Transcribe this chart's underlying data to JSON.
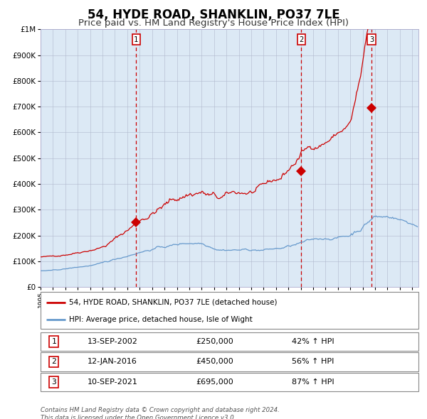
{
  "title": "54, HYDE ROAD, SHANKLIN, PO37 7LE",
  "subtitle": "Price paid vs. HM Land Registry's House Price Index (HPI)",
  "bg_color": "#dce9f5",
  "red_line_label": "54, HYDE ROAD, SHANKLIN, PO37 7LE (detached house)",
  "blue_line_label": "HPI: Average price, detached house, Isle of Wight",
  "transactions": [
    {
      "num": 1,
      "date": "13-SEP-2002",
      "price": 250000,
      "hpi_pct": "42%",
      "x_year": 2002.71
    },
    {
      "num": 2,
      "date": "12-JAN-2016",
      "price": 450000,
      "hpi_pct": "56%",
      "x_year": 2016.04
    },
    {
      "num": 3,
      "date": "10-SEP-2021",
      "price": 695000,
      "hpi_pct": "87%",
      "x_year": 2021.71
    }
  ],
  "footer_line1": "Contains HM Land Registry data © Crown copyright and database right 2024.",
  "footer_line2": "This data is licensed under the Open Government Licence v3.0.",
  "ylim": [
    0,
    1000000
  ],
  "xlim_start": 1995.0,
  "xlim_end": 2025.5,
  "red_color": "#cc0000",
  "blue_color": "#6699cc",
  "marker_color": "#cc0000",
  "vline_color": "#cc0000",
  "box_color": "#cc0000",
  "grid_color": "#b0b8cc",
  "title_fontsize": 12,
  "subtitle_fontsize": 9.5
}
